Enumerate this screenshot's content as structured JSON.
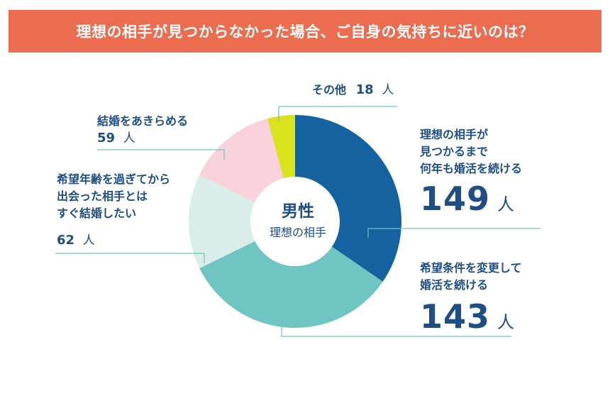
{
  "title": "理想の相手が見つからなかった場合、ご自身の気持ちに近いのは？",
  "center": {
    "main": "男性",
    "sub": "理想の相手"
  },
  "labels": {
    "s1": {
      "lines": [
        "理想の相手が",
        "見つかるまで",
        "何年も婚活を続ける"
      ],
      "count": "149",
      "unit": "人"
    },
    "s2": {
      "lines": [
        "希望条件を変更して",
        "婚活を続ける"
      ],
      "count": "143",
      "unit": "人"
    },
    "s3": {
      "lines": [
        "希望年齢を過ぎてから",
        "出会った相手とは",
        "すぐ結婚したい"
      ],
      "count": "62",
      "unit": "人"
    },
    "s4": {
      "lines": [
        "結婚をあきらめる"
      ],
      "count": "59",
      "unit": "人"
    },
    "s5": {
      "lines": [
        "その他"
      ],
      "count": "18",
      "unit": "人"
    }
  },
  "chart_data": {
    "type": "pie",
    "donut": true,
    "title": "理想の相手が見つからなかった場合、ご自身の気持ちに近いのは？",
    "categories": [
      "理想の相手が見つかるまで何年も婚活を続ける",
      "希望条件を変更して婚活を続ける",
      "希望年齢を過ぎてから出会った相手とはすぐ結婚したい",
      "結婚をあきらめる",
      "その他"
    ],
    "values": [
      149,
      143,
      62,
      59,
      18
    ],
    "colors": [
      "#1463a0",
      "#6fc5c1",
      "#d9eeeb",
      "#f8d1da",
      "#d9e21a"
    ],
    "leader_color": "#6fc5c1"
  }
}
